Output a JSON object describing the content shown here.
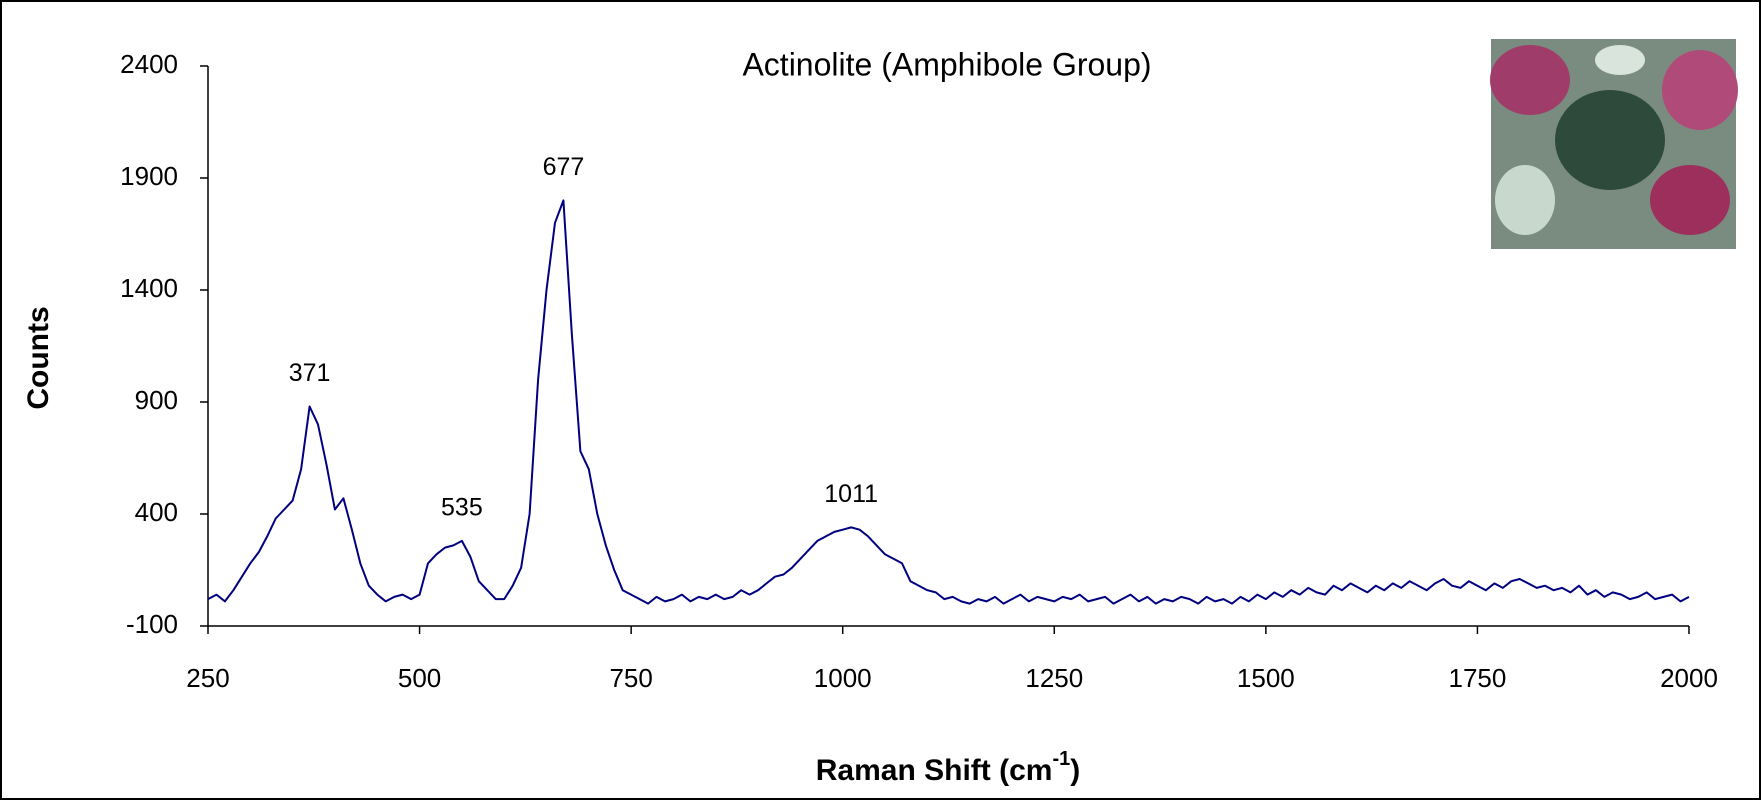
{
  "chart_data": {
    "type": "line",
    "title": "Actinolite (Amphibole Group)",
    "x_label": {
      "text": "Raman Shift (cm",
      "superscript": "-1",
      "suffix": ")"
    },
    "y_label": "Counts",
    "xlim": [
      250,
      2000
    ],
    "xticks": [
      250,
      500,
      750,
      1000,
      1250,
      1500,
      1750,
      2000
    ],
    "ylim": [
      -100,
      2400
    ],
    "yticks": [
      -100,
      400,
      900,
      1400,
      1900,
      2400
    ],
    "grid": false,
    "annotations": [
      "371",
      "535",
      "677",
      "1011"
    ],
    "x": [
      250,
      260,
      270,
      280,
      290,
      300,
      310,
      320,
      330,
      340,
      350,
      360,
      370,
      380,
      390,
      400,
      410,
      420,
      430,
      440,
      450,
      460,
      470,
      480,
      490,
      500,
      510,
      520,
      530,
      540,
      550,
      560,
      570,
      580,
      590,
      600,
      610,
      620,
      630,
      640,
      650,
      660,
      670,
      680,
      690,
      700,
      710,
      720,
      730,
      740,
      750,
      760,
      770,
      780,
      790,
      800,
      810,
      820,
      830,
      840,
      850,
      860,
      870,
      880,
      890,
      900,
      910,
      920,
      930,
      940,
      950,
      960,
      970,
      980,
      990,
      1000,
      1010,
      1020,
      1030,
      1040,
      1050,
      1060,
      1070,
      1080,
      1090,
      1100,
      1110,
      1120,
      1130,
      1140,
      1150,
      1160,
      1170,
      1180,
      1190,
      1200,
      1210,
      1220,
      1230,
      1240,
      1250,
      1260,
      1270,
      1280,
      1290,
      1300,
      1310,
      1320,
      1330,
      1340,
      1350,
      1360,
      1370,
      1380,
      1390,
      1400,
      1410,
      1420,
      1430,
      1440,
      1450,
      1460,
      1470,
      1480,
      1490,
      1500,
      1510,
      1520,
      1530,
      1540,
      1550,
      1560,
      1570,
      1580,
      1590,
      1600,
      1610,
      1620,
      1630,
      1640,
      1650,
      1660,
      1670,
      1680,
      1690,
      1700,
      1710,
      1720,
      1730,
      1740,
      1750,
      1760,
      1770,
      1780,
      1790,
      1800,
      1810,
      1820,
      1830,
      1840,
      1850,
      1860,
      1870,
      1880,
      1890,
      1900,
      1910,
      1920,
      1930,
      1940,
      1950,
      1960,
      1970,
      1980,
      1990,
      2000
    ],
    "series": [
      {
        "color": "#000080",
        "values": [
          20,
          40,
          10,
          60,
          120,
          180,
          230,
          300,
          380,
          420,
          460,
          600,
          880,
          800,
          620,
          420,
          470,
          330,
          180,
          80,
          40,
          10,
          30,
          40,
          20,
          40,
          180,
          220,
          250,
          260,
          280,
          210,
          100,
          60,
          20,
          20,
          80,
          160,
          400,
          1000,
          1400,
          1700,
          1800,
          1200,
          680,
          600,
          400,
          260,
          150,
          60,
          40,
          20,
          0,
          30,
          10,
          20,
          40,
          10,
          30,
          20,
          40,
          20,
          30,
          60,
          40,
          60,
          90,
          120,
          130,
          160,
          200,
          240,
          280,
          300,
          320,
          330,
          340,
          330,
          300,
          260,
          220,
          200,
          180,
          100,
          80,
          60,
          50,
          20,
          30,
          10,
          0,
          20,
          10,
          30,
          0,
          20,
          40,
          10,
          30,
          20,
          10,
          30,
          20,
          40,
          10,
          20,
          30,
          0,
          20,
          40,
          10,
          30,
          0,
          20,
          10,
          30,
          20,
          0,
          30,
          10,
          20,
          0,
          30,
          10,
          40,
          20,
          50,
          30,
          60,
          40,
          70,
          50,
          40,
          80,
          60,
          90,
          70,
          50,
          80,
          60,
          90,
          70,
          100,
          80,
          60,
          90,
          110,
          80,
          70,
          100,
          80,
          60,
          90,
          70,
          100,
          110,
          90,
          70,
          80,
          60,
          70,
          50,
          80,
          40,
          60,
          30,
          50,
          40,
          20,
          30,
          50,
          20,
          30,
          40,
          10,
          30
        ]
      }
    ]
  }
}
